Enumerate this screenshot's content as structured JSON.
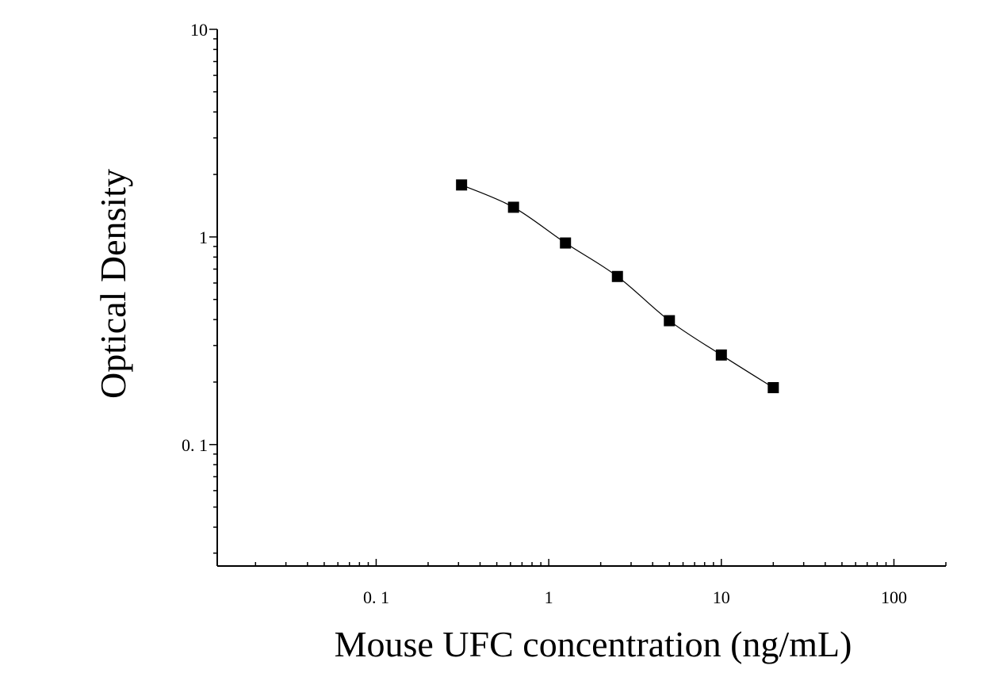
{
  "chart_data": {
    "type": "scatter",
    "title": "",
    "xlabel": "Mouse UFC concentration (ng/mL)",
    "ylabel": "Optical Density",
    "xscale": "log",
    "yscale": "log",
    "xlim": [
      0.012,
      200
    ],
    "ylim": [
      0.026,
      10
    ],
    "x_ticks": [
      {
        "value": 0.1,
        "label": "0. 1"
      },
      {
        "value": 1,
        "label": "1"
      },
      {
        "value": 10,
        "label": "10"
      },
      {
        "value": 100,
        "label": "100"
      }
    ],
    "y_ticks": [
      {
        "value": 0.1,
        "label": "0. 1"
      },
      {
        "value": 1,
        "label": "1"
      },
      {
        "value": 10,
        "label": "10"
      }
    ],
    "grid": false,
    "legend": "none",
    "marker": "square",
    "fit_curve": true,
    "series": [
      {
        "x": [
          0.3125,
          0.625,
          1.25,
          2.5,
          5,
          10,
          20
        ],
        "y": [
          1.78,
          1.39,
          0.935,
          0.645,
          0.395,
          0.27,
          0.188
        ]
      }
    ]
  }
}
